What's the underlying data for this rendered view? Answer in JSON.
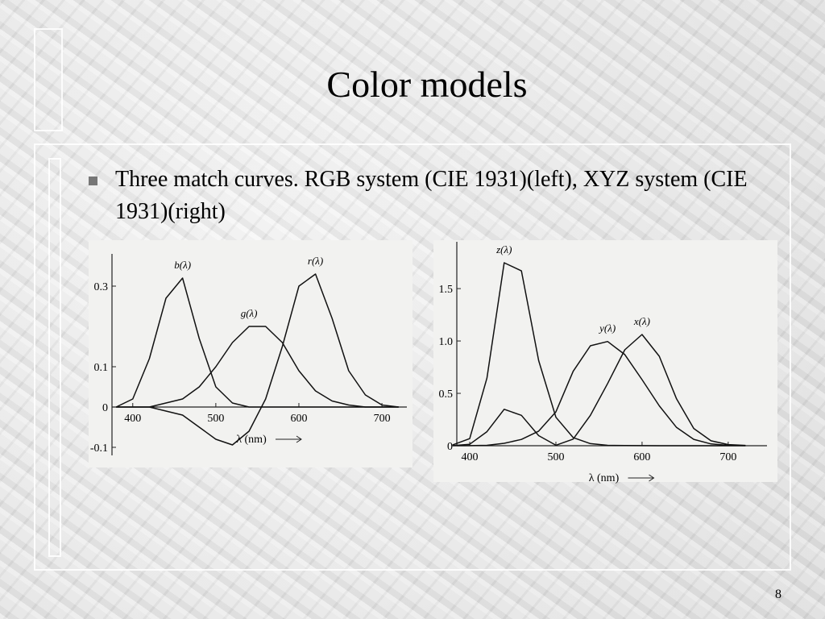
{
  "title": "Color models",
  "bullet": "Three match curves. RGB system (CIE 1931)(left), XYZ system (CIE 1931)(right)",
  "page_number": "8",
  "chart_data": [
    {
      "type": "line",
      "x_label": "λ (nm)",
      "x": [
        380,
        400,
        420,
        440,
        460,
        480,
        500,
        520,
        540,
        560,
        580,
        600,
        620,
        640,
        660,
        680,
        700,
        720
      ],
      "series": [
        {
          "name": "b(λ)",
          "color": "#111111",
          "values": [
            0,
            0.02,
            0.12,
            0.27,
            0.32,
            0.17,
            0.05,
            0.01,
            0,
            0,
            0,
            0,
            0,
            0,
            0,
            0,
            0,
            0
          ]
        },
        {
          "name": "g(λ)",
          "color": "#111111",
          "values": [
            0,
            0,
            0,
            0.01,
            0.02,
            0.05,
            0.1,
            0.16,
            0.2,
            0.2,
            0.16,
            0.09,
            0.04,
            0.015,
            0.005,
            0,
            0,
            0
          ]
        },
        {
          "name": "r(λ)",
          "color": "#111111",
          "values": [
            0,
            0,
            0,
            -0.01,
            -0.02,
            -0.05,
            -0.08,
            -0.094,
            -0.06,
            0.02,
            0.15,
            0.3,
            0.33,
            0.22,
            0.09,
            0.03,
            0.005,
            0
          ]
        }
      ],
      "xlim": [
        375,
        730
      ],
      "ylim": [
        -0.12,
        0.36
      ],
      "xticks": [
        400,
        500,
        600,
        700
      ],
      "yticks": [
        -0.1,
        0,
        0.1,
        0.3
      ],
      "grid": false
    },
    {
      "type": "line",
      "x_label": "λ (nm)",
      "x": [
        380,
        400,
        420,
        440,
        460,
        480,
        500,
        520,
        540,
        560,
        580,
        600,
        620,
        640,
        660,
        680,
        700,
        720
      ],
      "series": [
        {
          "name": "z(λ)",
          "color": "#111111",
          "values": [
            0.007,
            0.068,
            0.646,
            1.747,
            1.669,
            0.813,
            0.272,
            0.078,
            0.02,
            0.004,
            0.002,
            0.001,
            0,
            0,
            0,
            0,
            0,
            0
          ]
        },
        {
          "name": "y(λ)",
          "color": "#111111",
          "values": [
            0,
            0.0004,
            0.004,
            0.023,
            0.06,
            0.139,
            0.323,
            0.71,
            0.954,
            0.995,
            0.87,
            0.631,
            0.381,
            0.175,
            0.061,
            0.017,
            0.004,
            0.001
          ]
        },
        {
          "name": "x(λ)",
          "color": "#111111",
          "values": [
            0.001,
            0.014,
            0.134,
            0.348,
            0.29,
            0.096,
            0.005,
            0.063,
            0.29,
            0.594,
            0.916,
            1.062,
            0.854,
            0.448,
            0.165,
            0.047,
            0.011,
            0.003
          ]
        }
      ],
      "xlim": [
        385,
        745
      ],
      "ylim": [
        0,
        1.87
      ],
      "xticks": [
        400,
        500,
        600,
        700
      ],
      "yticks": [
        0,
        0.5,
        {
          "value": 1,
          "label": "1.0"
        },
        1.5
      ],
      "grid": false
    }
  ]
}
